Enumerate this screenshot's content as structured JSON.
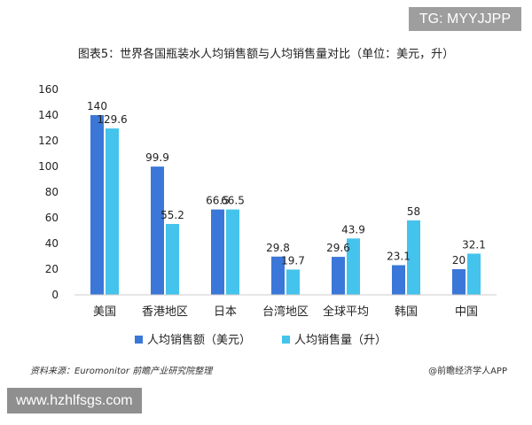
{
  "watermark_top": "TG: MYYJJPP",
  "source_note": "资料来源：Euromonitor 前瞻产业研究院整理",
  "publisher": "@前瞻经济学人APP",
  "watermark_bottom": "www.hzhlfsgs.com",
  "chart_data": {
    "type": "bar",
    "title": "图表5：世界各国瓶装水人均销售额与人均销售量对比（单位：美元，升）",
    "categories": [
      "美国",
      "香港地区",
      "日本",
      "台湾地区",
      "全球平均",
      "韩国",
      "中国"
    ],
    "series": [
      {
        "name": "人均销售额（美元）",
        "values": [
          140,
          99.9,
          66.5,
          29.8,
          29.6,
          23.1,
          20
        ],
        "color": "#3b77d8"
      },
      {
        "name": "人均销售量（升）",
        "values": [
          129.6,
          55.2,
          66.5,
          19.7,
          43.9,
          58,
          32.1
        ],
        "color": "#44c3ec"
      }
    ],
    "ylim": [
      0,
      160
    ],
    "yticks": [
      0,
      20,
      40,
      60,
      80,
      100,
      120,
      140,
      160
    ],
    "xlabel": "",
    "ylabel": "",
    "grid": false,
    "legend_position": "bottom"
  }
}
